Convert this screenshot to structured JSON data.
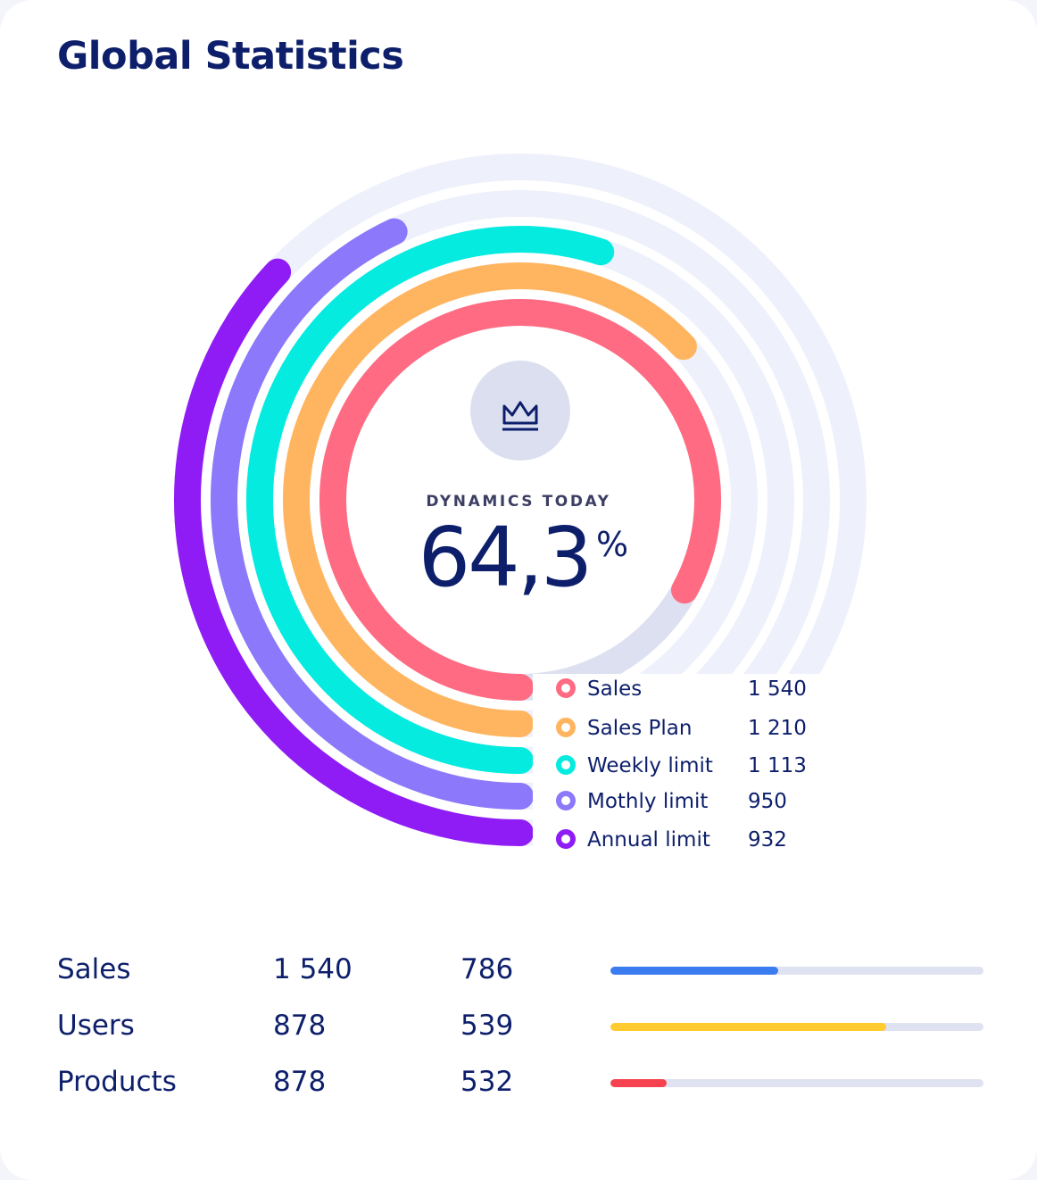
{
  "title": "Global Statistics",
  "chart_data": {
    "type": "radial-bar",
    "center_label": "DYNAMICS TODAY",
    "center_value": "64,3",
    "center_unit": "%",
    "center_icon": "crown-icon",
    "track_color": "#eef1fb",
    "series": [
      {
        "name": "Sales",
        "display": "1 540",
        "fraction": 0.83,
        "color": "#ff6b82"
      },
      {
        "name": "Sales Plan",
        "display": "1 210",
        "fraction": 0.63,
        "color": "#ffb55f"
      },
      {
        "name": "Weekly limit",
        "display": "1 113",
        "fraction": 0.55,
        "color": "#05ebe0"
      },
      {
        "name": "Mothly limit",
        "display": "950",
        "fraction": 0.43,
        "color": "#8c78fa"
      },
      {
        "name": "Annual limit",
        "display": "932",
        "fraction": 0.37,
        "color": "#8f1cf5"
      }
    ]
  },
  "table": {
    "rows": [
      {
        "name": "Sales",
        "value1": "1 540",
        "value2": "786",
        "progress": 0.45,
        "color": "#3b7cf0"
      },
      {
        "name": "Users",
        "value1": "878",
        "value2": "539",
        "progress": 0.74,
        "color": "#ffcb2f"
      },
      {
        "name": "Products",
        "value1": "878",
        "value2": "532",
        "progress": 0.15,
        "color": "#f5424e"
      }
    ]
  }
}
